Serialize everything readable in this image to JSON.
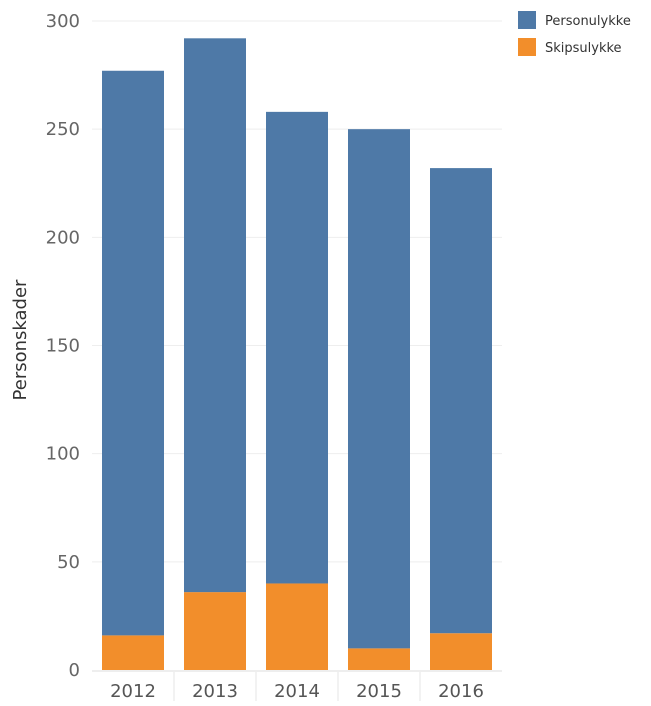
{
  "chart_data": {
    "type": "bar",
    "stacked": true,
    "categories": [
      "2012",
      "2013",
      "2014",
      "2015",
      "2016"
    ],
    "series": [
      {
        "name": "Personulykke",
        "values": [
          261,
          256,
          218,
          240,
          215
        ],
        "color": "#4e79a7"
      },
      {
        "name": "Skipsulykke",
        "values": [
          16,
          36,
          40,
          10,
          17
        ],
        "color": "#f28e2b"
      }
    ],
    "title": "",
    "xlabel": "",
    "ylabel": "Personskader",
    "ylim": [
      0,
      300
    ],
    "yticks": [
      0,
      50,
      100,
      150,
      200,
      250,
      300
    ],
    "grid": true,
    "legend_position": "top-right"
  }
}
